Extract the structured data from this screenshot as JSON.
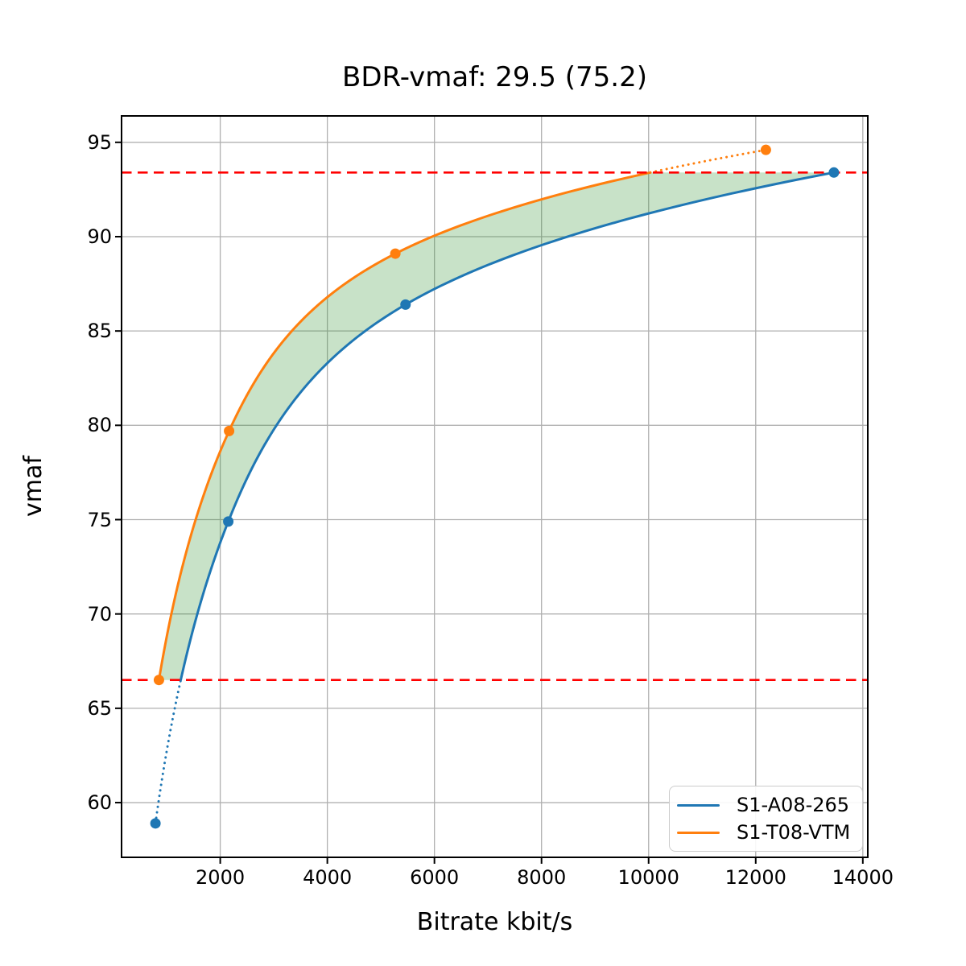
{
  "title": "BDR-vmaf: 29.5 (75.2)",
  "chart_data": {
    "type": "line",
    "title": "BDR-vmaf: 29.5 (75.2)",
    "xlabel": "Bitrate kbit/s",
    "ylabel": "vmaf",
    "xlim": [
      157,
      14093
    ],
    "ylim": [
      57.1,
      96.4
    ],
    "xticks": [
      2000,
      4000,
      6000,
      8000,
      10000,
      12000,
      14000
    ],
    "yticks": [
      60,
      65,
      70,
      75,
      80,
      85,
      90,
      95
    ],
    "grid": true,
    "grid_color": "#b0b0b0",
    "legend_position": "lower right",
    "series": [
      {
        "name": "S1-A08-265",
        "color": "#1f77b4",
        "x": [
          790,
          2150,
          5460,
          13460
        ],
        "y": [
          58.9,
          74.9,
          86.4,
          93.4
        ]
      },
      {
        "name": "S1-T08-VTM",
        "color": "#ff7f0e",
        "x": [
          855,
          2165,
          5270,
          12190
        ],
        "y": [
          66.5,
          79.7,
          89.1,
          94.6
        ]
      }
    ],
    "overlap_bounds": {
      "upper_vmaf": 93.4,
      "lower_vmaf": 66.5,
      "line_color": "#ff0000",
      "line_style": "dashed"
    },
    "fill_between": {
      "color": "#228B22",
      "opacity": 0.25,
      "range_vmaf": [
        66.5,
        93.4
      ]
    },
    "interpolation": "cubic-spline-log-rate"
  }
}
